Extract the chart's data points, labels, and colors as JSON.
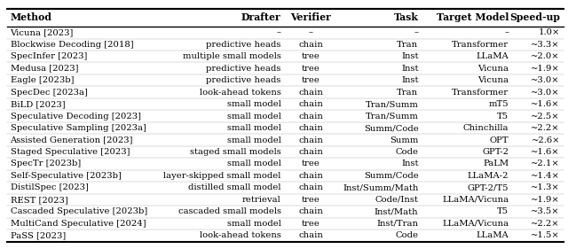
{
  "headers": [
    "Method",
    "Drafter",
    "Verifier",
    "Task",
    "Target Model",
    "Speed-up"
  ],
  "rows": [
    [
      "Vicuna [2023]",
      "–",
      "–",
      "–",
      "–",
      "1.0×"
    ],
    [
      "Blockwise Decoding [2018]",
      "predictive heads",
      "chain",
      "Tran",
      "Transformer",
      "~3.3×"
    ],
    [
      "SpecInfer [2023]",
      "multiple small models",
      "tree",
      "Inst",
      "LLaMA",
      "~2.0×"
    ],
    [
      "Medusa [2023]",
      "predictive heads",
      "tree",
      "Inst",
      "Vicuna",
      "~1.9×"
    ],
    [
      "Eagle [2023b]",
      "predictive heads",
      "tree",
      "Inst",
      "Vicuna",
      "~3.0×"
    ],
    [
      "SpecDec [2023a]",
      "look-ahead tokens",
      "chain",
      "Tran",
      "Transformer",
      "~3.0×"
    ],
    [
      "BiLD [2023]",
      "small model",
      "chain",
      "Tran/Summ",
      "mT5",
      "~1.6×"
    ],
    [
      "Speculative Decoding [2023]",
      "small model",
      "chain",
      "Tran/Summ",
      "T5",
      "~2.5×"
    ],
    [
      "Speculative Sampling [2023a]",
      "small model",
      "chain",
      "Summ/Code",
      "Chinchilla",
      "~2.2×"
    ],
    [
      "Assisted Generation [2023]",
      "small model",
      "chain",
      "Summ",
      "OPT",
      "~2.6×"
    ],
    [
      "Staged Speculative [2023]",
      "staged small models",
      "chain",
      "Code",
      "GPT-2",
      "~1.6×"
    ],
    [
      "SpecTr [2023b]",
      "small model",
      "tree",
      "Inst",
      "PaLM",
      "~2.1×"
    ],
    [
      "Self-Speculative [2023b]",
      "layer-skipped small model",
      "chain",
      "Summ/Code",
      "LLaMA-2",
      "~1.4×"
    ],
    [
      "DistilSpec [2023]",
      "distilled small model",
      "chain",
      "Inst/Summ/Math",
      "GPT-2/T5",
      "~1.3×"
    ],
    [
      "REST [2023]",
      "retrieval",
      "tree",
      "Code/Inst",
      "LLaMA/Vicuna",
      "~1.9×"
    ],
    [
      "Cascaded Speculative [2023b]",
      "cascaded small models",
      "chain",
      "Inst/Math",
      "T5",
      "~3.5×"
    ],
    [
      "MultiCand Speculative [2024]",
      "small model",
      "tree",
      "Inst/Tran",
      "LLaMA/Vicuna",
      "~2.2×"
    ],
    [
      "PaSS [2023]",
      "look-ahead tokens",
      "chain",
      "Code",
      "LLaMA",
      "~1.5×"
    ]
  ],
  "col_aligns": [
    "left",
    "right",
    "center",
    "right",
    "right",
    "right"
  ],
  "font_size": 7.2,
  "header_font_size": 7.8,
  "background_color": "#ffffff",
  "text_color": "#000000",
  "figure_width": 6.4,
  "figure_height": 2.81
}
